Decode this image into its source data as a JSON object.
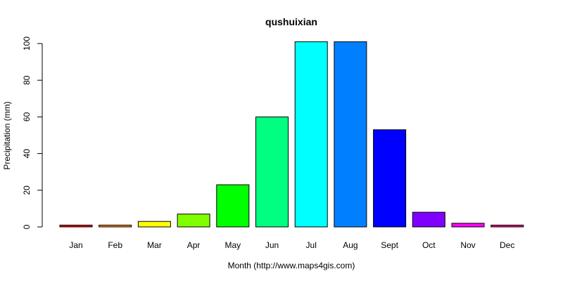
{
  "chart_data": {
    "type": "bar",
    "title": "qushuixian",
    "xlabel": "Month (http://www.maps4gis.com)",
    "ylabel": "Precipitation (mm)",
    "categories": [
      "Jan",
      "Feb",
      "Mar",
      "Apr",
      "May",
      "Jun",
      "Jul",
      "Aug",
      "Sept",
      "Oct",
      "Nov",
      "Dec"
    ],
    "values": [
      1,
      1,
      3,
      7,
      23,
      60,
      101,
      101,
      53,
      8,
      2,
      1
    ],
    "colors": [
      "#FF0000",
      "#FF8000",
      "#FFFF00",
      "#80FF00",
      "#00FF00",
      "#00FF80",
      "#00FFFF",
      "#0080FF",
      "#0000FF",
      "#8000FF",
      "#FF00FF",
      "#FF0080"
    ],
    "yticks": [
      0,
      20,
      40,
      60,
      80,
      100
    ],
    "ylim": [
      0,
      101
    ],
    "grid": false,
    "legend": "none"
  }
}
